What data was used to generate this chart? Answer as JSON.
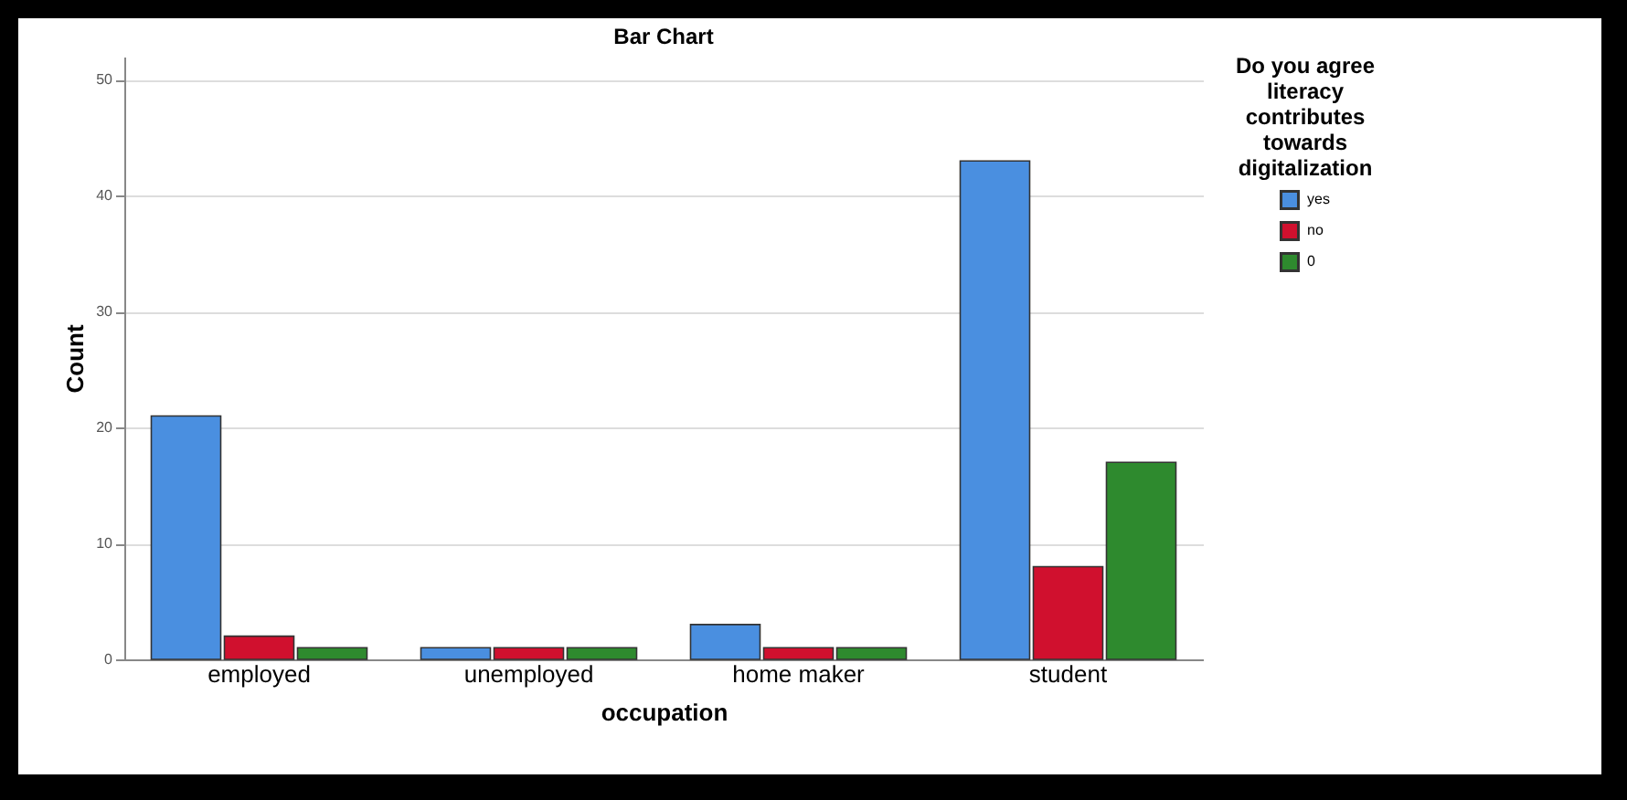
{
  "chart_data": {
    "type": "bar",
    "title": "Bar Chart",
    "xlabel": "occupation",
    "ylabel": "Count",
    "legend_title": "Do you agree literacy contributes towards digitalization",
    "categories": [
      "employed",
      "unemployed",
      "home maker",
      "student"
    ],
    "series": [
      {
        "name": "yes",
        "color": "#4a8fe0",
        "values": [
          21,
          1,
          3,
          43
        ]
      },
      {
        "name": "no",
        "color": "#d0102e",
        "values": [
          2,
          1,
          1,
          8
        ]
      },
      {
        "name": "0",
        "color": "#2e8a2e",
        "values": [
          1,
          1,
          1,
          17
        ]
      }
    ],
    "ylim": [
      0,
      52
    ],
    "yticks": [
      0,
      10,
      20,
      30,
      40,
      50
    ],
    "grid": "y",
    "legend": "top right"
  }
}
